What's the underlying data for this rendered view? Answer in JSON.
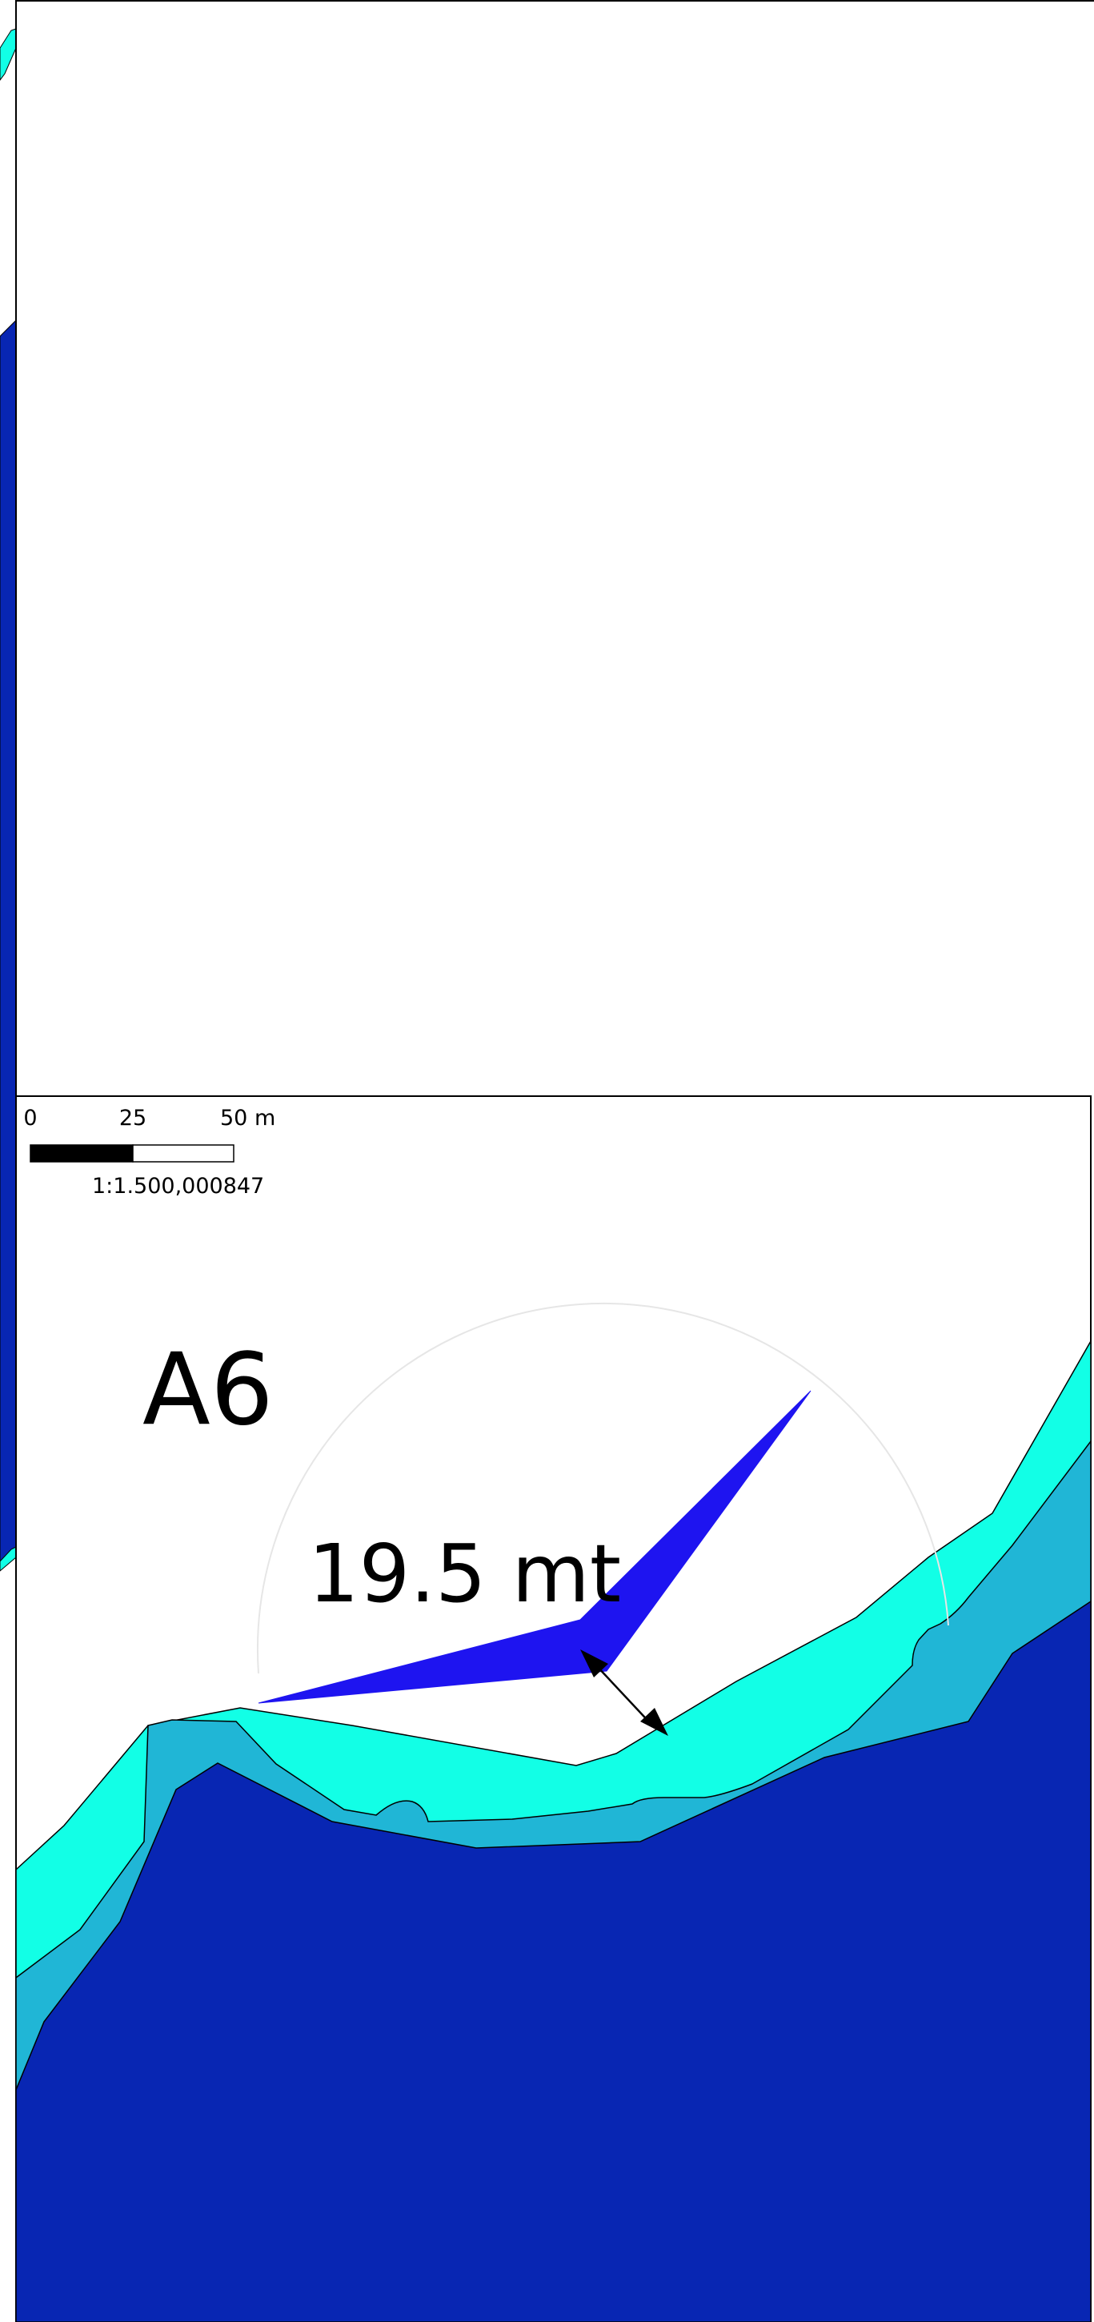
{
  "scalebar": {
    "tick_0": "0",
    "tick_25": "25",
    "tick_50": "50 m",
    "ratio": "1:1.500,000847"
  },
  "map": {
    "area_label": "A6",
    "distance_label": "19.5 mt"
  },
  "colors": {
    "deep_water": "#0826b3",
    "mid_water": "#20b6d6",
    "shallow_water": "#12ffe6",
    "fan": "#1e14f0",
    "frame": "#000000"
  },
  "icons": {
    "distance_arrow": "double-headed-arrow-icon",
    "sector": "fan-sector-icon"
  }
}
